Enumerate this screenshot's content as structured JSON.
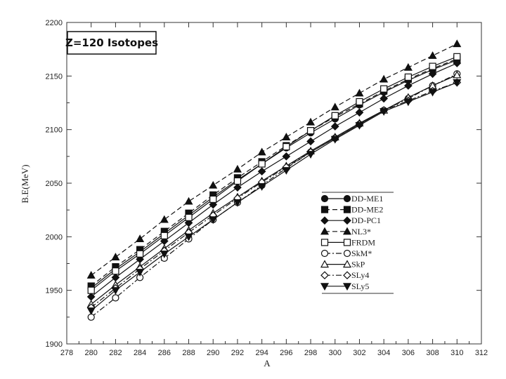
{
  "chart_data": {
    "type": "line",
    "title": "Z=120 Isotopes",
    "xlabel": "A",
    "ylabel": "B.E(MeV)",
    "xlim": [
      278,
      312
    ],
    "ylim": [
      1900,
      2200
    ],
    "xticks": [
      278,
      280,
      282,
      284,
      286,
      288,
      290,
      292,
      294,
      296,
      298,
      300,
      302,
      304,
      306,
      308,
      310,
      312
    ],
    "yticks": [
      1900,
      1950,
      2000,
      2050,
      2100,
      2150,
      2200
    ],
    "grid": false,
    "legend_position": "right-center",
    "x": [
      280,
      282,
      284,
      286,
      288,
      290,
      292,
      294,
      296,
      298,
      300,
      302,
      304,
      306,
      308,
      310
    ],
    "series": [
      {
        "name": "DD-ME1",
        "marker": "circle-filled",
        "dash": "solid",
        "values": [
          1952,
          1970,
          1986,
          2003,
          2020,
          2037,
          2053,
          2068,
          2083,
          2097,
          2110,
          2123,
          2135,
          2146,
          2156,
          2165
        ]
      },
      {
        "name": "DD-ME2",
        "marker": "square-filled",
        "dash": "dashed",
        "values": [
          1954,
          1972,
          1988,
          2005,
          2022,
          2039,
          2055,
          2070,
          2085,
          2099,
          2112,
          2124,
          2136,
          2147,
          2157,
          2166
        ]
      },
      {
        "name": "DD-PC1",
        "marker": "diamond-filled",
        "dash": "solid",
        "values": [
          1944,
          1962,
          1979,
          1996,
          2013,
          2030,
          2046,
          2061,
          2075,
          2089,
          2103,
          2116,
          2129,
          2141,
          2152,
          2162
        ]
      },
      {
        "name": "NL3*",
        "marker": "triangle-up-filled",
        "dash": "dashed",
        "values": [
          1964,
          1981,
          1998,
          2016,
          2033,
          2048,
          2063,
          2079,
          2093,
          2107,
          2121,
          2134,
          2147,
          2158,
          2169,
          2180
        ]
      },
      {
        "name": "FRDM",
        "marker": "square-open",
        "dash": "solid",
        "values": [
          1950,
          1968,
          1984,
          2001,
          2018,
          2035,
          2052,
          2068,
          2084,
          2099,
          2113,
          2126,
          2138,
          2149,
          2159,
          2168
        ]
      },
      {
        "name": "SkM*",
        "marker": "circle-open",
        "dash": "dashdot",
        "values": [
          1925,
          1943,
          1962,
          1980,
          1998,
          2016,
          2032,
          2048,
          2064,
          2079,
          2092,
          2105,
          2118,
          2129,
          2141,
          2152
        ]
      },
      {
        "name": "SkP",
        "marker": "triangle-up-open",
        "dash": "solid",
        "values": [
          1937,
          1955,
          1972,
          1989,
          2006,
          2022,
          2037,
          2052,
          2066,
          2080,
          2093,
          2106,
          2118,
          2130,
          2141,
          2151
        ]
      },
      {
        "name": "SLy4",
        "marker": "diamond-open",
        "dash": "dashdot",
        "values": [
          1934,
          1952,
          1970,
          1987,
          2004,
          2020,
          2036,
          2051,
          2065,
          2079,
          2092,
          2105,
          2118,
          2127,
          2136,
          2144
        ]
      },
      {
        "name": "SLy5",
        "marker": "triangle-down-filled",
        "dash": "solid",
        "values": [
          1931,
          1950,
          1967,
          1984,
          2000,
          2016,
          2032,
          2047,
          2062,
          2077,
          2091,
          2104,
          2117,
          2126,
          2135,
          2144
        ]
      }
    ]
  }
}
